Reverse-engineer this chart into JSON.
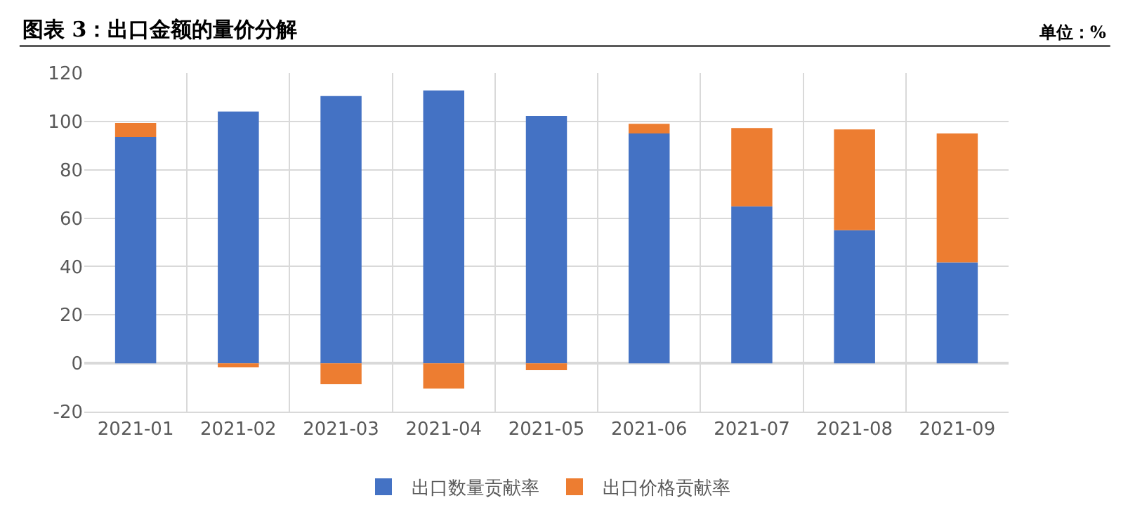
{
  "chart_data": {
    "type": "bar",
    "title": "图表 3：出口金额的量价分解",
    "subtitle": "单位：%",
    "categories": [
      "2021-01",
      "2021-02",
      "2021-03",
      "2021-04",
      "2021-05",
      "2021-06",
      "2021-07",
      "2021-08",
      "2021-09"
    ],
    "series": [
      {
        "name": "出口数量贡献率",
        "color": "#4472c4",
        "values": [
          93.6,
          104.1,
          110.5,
          112.8,
          102.3,
          95.0,
          64.9,
          55.0,
          41.7
        ]
      },
      {
        "name": "出口价格贡献率",
        "color": "#ed7d31",
        "values": [
          5.8,
          -1.7,
          -8.7,
          -10.5,
          -2.9,
          4.0,
          32.4,
          41.7,
          53.3
        ]
      }
    ],
    "stacked": true,
    "ylim": [
      -20,
      120
    ],
    "yticks": [
      -20,
      0,
      20,
      40,
      60,
      80,
      100,
      120
    ],
    "grid": true,
    "legend": "bottom"
  }
}
